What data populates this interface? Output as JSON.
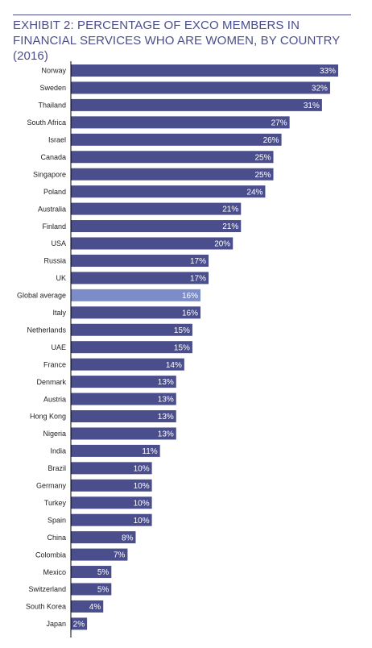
{
  "chart_data": {
    "type": "bar",
    "orientation": "horizontal",
    "title": "EXHIBIT 2: PERCENTAGE OF EXCO MEMBERS IN FINANCIAL SERVICES WHO ARE WOMEN, BY COUNTRY (2016)",
    "xlabel": "",
    "ylabel": "",
    "unit": "%",
    "xlim": [
      0,
      33
    ],
    "grid": false,
    "legend": "none",
    "categories": [
      "Norway",
      "Sweden",
      "Thailand",
      "South Africa",
      "Israel",
      "Canada",
      "Singapore",
      "Poland",
      "Australia",
      "Finland",
      "USA",
      "Russia",
      "UK",
      "Global average",
      "Italy",
      "Netherlands",
      "UAE",
      "France",
      "Denmark",
      "Austria",
      "Hong Kong",
      "Nigeria",
      "India",
      "Brazil",
      "Germany",
      "Turkey",
      "Spain",
      "China",
      "Colombia",
      "Mexico",
      "Switzerland",
      "South Korea",
      "Japan"
    ],
    "values": [
      33,
      32,
      31,
      27,
      26,
      25,
      25,
      24,
      21,
      21,
      20,
      17,
      17,
      16,
      16,
      15,
      15,
      14,
      13,
      13,
      13,
      13,
      11,
      10,
      10,
      10,
      10,
      8,
      7,
      5,
      5,
      4,
      2
    ],
    "value_labels": [
      "33%",
      "32%",
      "31%",
      "27%",
      "26%",
      "25%",
      "25%",
      "24%",
      "21%",
      "21%",
      "20%",
      "17%",
      "17%",
      "16%",
      "16%",
      "15%",
      "15%",
      "14%",
      "13%",
      "13%",
      "13%",
      "13%",
      "11%",
      "10%",
      "10%",
      "10%",
      "10%",
      "8%",
      "7%",
      "5%",
      "5%",
      "4%",
      "2%"
    ],
    "highlight_category": "Global average",
    "colors": {
      "bar": "#4b4e8c",
      "highlight_bar": "#7b8cc9",
      "axis": "#000000",
      "title": "#4b4e8c",
      "category_text": "#222222",
      "value_text": "#ffffff"
    }
  }
}
